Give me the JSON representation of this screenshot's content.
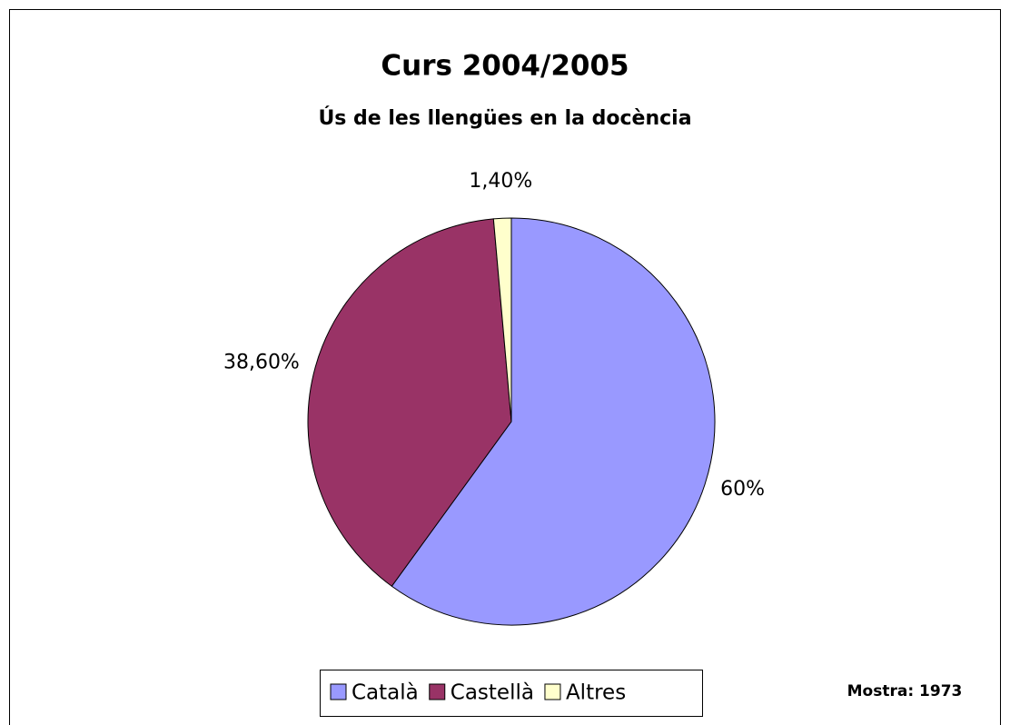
{
  "chart_data": {
    "type": "pie",
    "title": "Curs 2004/2005",
    "subtitle": "Ús de les llengües en la docència",
    "annotation": "Mostra: 1973",
    "categories": [
      "Català",
      "Castellà",
      "Altres"
    ],
    "values": [
      60,
      38.6,
      1.4
    ],
    "value_labels": [
      "60%",
      "38,60%",
      "1,40%"
    ],
    "colors": [
      "#9999ff",
      "#993366",
      "#ffffcc"
    ],
    "legend": "bottom"
  }
}
